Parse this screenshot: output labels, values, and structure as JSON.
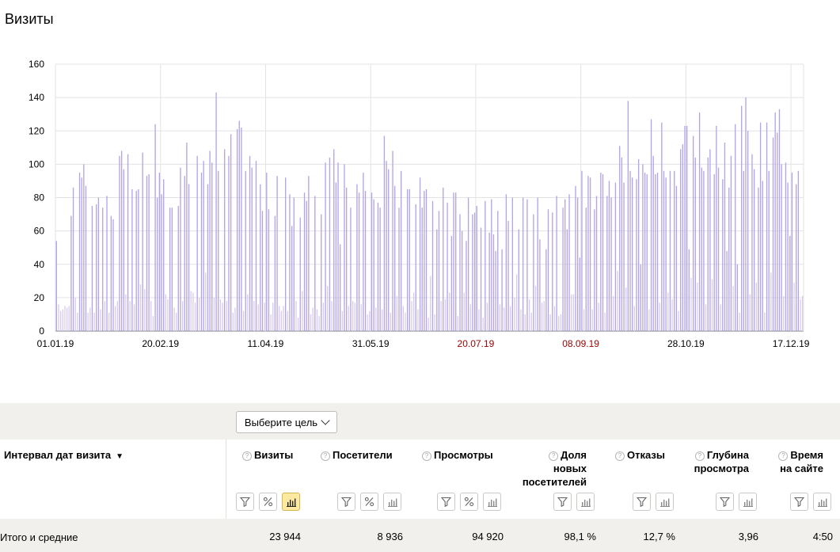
{
  "title": "Визиты",
  "chart_data": {
    "type": "bar",
    "title": "",
    "xlabel": "",
    "ylabel": "",
    "ylim": [
      0,
      160
    ],
    "y_ticks": [
      0,
      20,
      40,
      60,
      80,
      100,
      120,
      140,
      160
    ],
    "x_tick_labels": [
      "01.01.19",
      "20.02.19",
      "11.04.19",
      "31.05.19",
      "20.07.19",
      "08.09.19",
      "28.10.19",
      "17.12.19"
    ],
    "x_tick_weekend": [
      false,
      false,
      false,
      false,
      true,
      true,
      false,
      false
    ],
    "x_start": "2019-01-01",
    "x_end": "2019-12-31",
    "grid": true,
    "colors": {
      "bar": "#b3a4e6",
      "bar_low": "#d8cbf0",
      "grid": "#e3e3e3",
      "axis": "#777777",
      "weekend_label": "#9b0000"
    },
    "series": [
      {
        "name": "Визиты",
        "values": [
          54,
          16,
          12,
          13,
          15,
          14,
          15,
          69,
          86,
          20,
          11,
          95,
          92,
          100,
          87,
          11,
          14,
          75,
          11,
          76,
          80,
          13,
          74,
          18,
          81,
          11,
          69,
          67,
          15,
          18,
          105,
          108,
          97,
          22,
          106,
          18,
          85,
          16,
          84,
          85,
          28,
          107,
          25,
          93,
          94,
          18,
          9,
          124,
          80,
          95,
          82,
          91,
          22,
          19,
          74,
          74,
          14,
          11,
          75,
          98,
          18,
          93,
          113,
          88,
          24,
          23,
          17,
          105,
          20,
          95,
          102,
          35,
          88,
          108,
          101,
          20,
          143,
          96,
          19,
          17,
          109,
          18,
          105,
          118,
          11,
          14,
          121,
          126,
          122,
          12,
          96,
          22,
          105,
          98,
          18,
          102,
          16,
          88,
          72,
          17,
          95,
          73,
          10,
          17,
          69,
          93,
          15,
          12,
          15,
          92,
          12,
          82,
          63,
          80,
          18,
          8,
          68,
          24,
          83,
          78,
          93,
          10,
          14,
          81,
          13,
          9,
          70,
          17,
          101,
          27,
          104,
          18,
          109,
          89,
          101,
          52,
          12,
          100,
          86,
          15,
          74,
          18,
          17,
          88,
          83,
          16,
          95,
          84,
          10,
          12,
          83,
          79,
          14,
          77,
          74,
          13,
          117,
          102,
          97,
          11,
          108,
          87,
          21,
          74,
          96,
          15,
          11,
          85,
          85,
          18,
          23,
          76,
          13,
          92,
          74,
          84,
          85,
          8,
          33,
          78,
          10,
          61,
          72,
          18,
          86,
          19,
          77,
          23,
          57,
          83,
          83,
          9,
          70,
          60,
          23,
          54,
          80,
          16,
          70,
          71,
          75,
          13,
          62,
          8,
          78,
          17,
          59,
          79,
          58,
          48,
          72,
          16,
          49,
          14,
          82,
          66,
          15,
          80,
          20,
          34,
          61,
          13,
          80,
          10,
          79,
          19,
          11,
          70,
          27,
          80,
          55,
          17,
          18,
          49,
          73,
          10,
          71,
          15,
          81,
          9,
          10,
          74,
          79,
          61,
          82,
          22,
          22,
          87,
          80,
          44,
          96,
          13,
          74,
          93,
          92,
          13,
          73,
          81,
          17,
          95,
          94,
          11,
          81,
          90,
          80,
          21,
          89,
          36,
          111,
          104,
          89,
          26,
          138,
          96,
          92,
          15,
          91,
          103,
          40,
          100,
          95,
          94,
          13,
          127,
          105,
          94,
          95,
          17,
          125,
          96,
          92,
          23,
          96,
          19,
          96,
          87,
          12,
          109,
          112,
          123,
          123,
          49,
          32,
          117,
          104,
          29,
          131,
          98,
          96,
          16,
          104,
          109,
          31,
          94,
          123,
          98,
          16,
          91,
          113,
          48,
          86,
          105,
          27,
          124,
          40,
          11,
          135,
          96,
          140,
          120,
          22,
          106,
          97,
          29,
          86,
          125,
          90,
          11,
          125,
          96,
          35,
          116,
          131,
          119,
          133,
          100,
          21,
          101,
          89,
          57,
          95,
          29,
          88,
          96,
          19,
          21
        ],
        "low_threshold": 40
      }
    ]
  },
  "toolbar": {
    "goal_select_label": "Выберите цель"
  },
  "table": {
    "dimension_header": "Интервал дат визита",
    "dimension_sort_indicator": "▼",
    "columns": [
      {
        "key": "visits",
        "title_lines": [
          "Визиты"
        ],
        "controls": [
          "filter",
          "percent",
          "chart"
        ],
        "chart_active": true,
        "total": "23 944"
      },
      {
        "key": "visitors",
        "title_lines": [
          "Посетители"
        ],
        "controls": [
          "filter",
          "percent",
          "chart"
        ],
        "chart_active": false,
        "total": "8 936"
      },
      {
        "key": "pageviews",
        "title_lines": [
          "Просмотры"
        ],
        "controls": [
          "filter",
          "percent",
          "chart"
        ],
        "chart_active": false,
        "total": "94 920"
      },
      {
        "key": "new_share",
        "title_lines": [
          "Доля",
          "новых",
          "посетителей"
        ],
        "controls": [
          "filter",
          "chart"
        ],
        "chart_active": false,
        "total": "98,1 %"
      },
      {
        "key": "bounce",
        "title_lines": [
          "Отказы"
        ],
        "controls": [
          "filter",
          "chart"
        ],
        "chart_active": false,
        "total": "12,7 %"
      },
      {
        "key": "depth",
        "title_lines": [
          "Глубина",
          "просмотра"
        ],
        "controls": [
          "filter",
          "chart"
        ],
        "chart_active": false,
        "total": "3,96"
      },
      {
        "key": "time",
        "title_lines": [
          "Время",
          "на сайте"
        ],
        "controls": [
          "filter",
          "chart"
        ],
        "chart_active": false,
        "total": "4:50"
      }
    ],
    "totals_label": "Итого и средние"
  },
  "icons": {
    "help": "help-circle-icon",
    "filter": "filter-icon",
    "percent": "percent-icon",
    "chart": "bar-chart-icon"
  }
}
